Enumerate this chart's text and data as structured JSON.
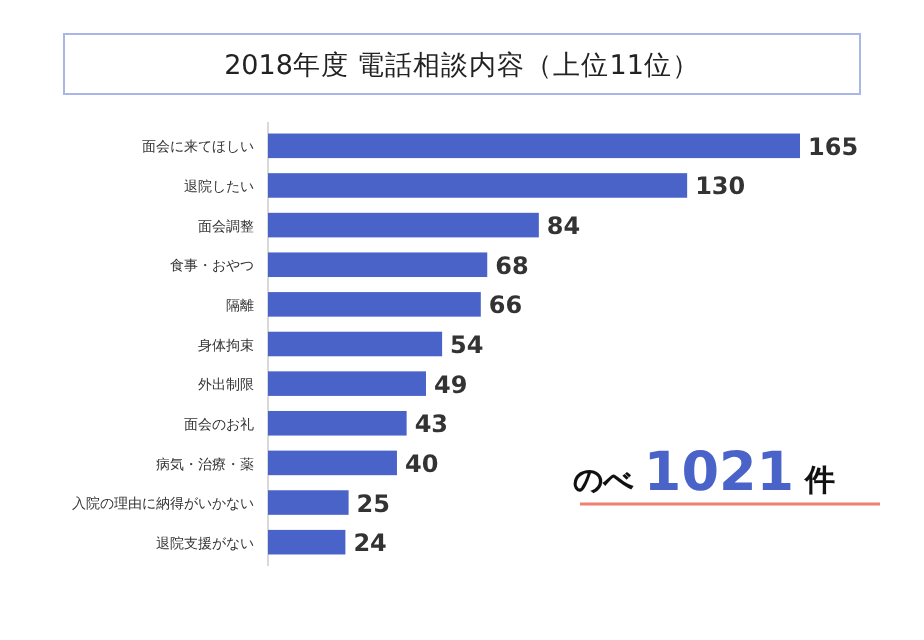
{
  "chart_data": {
    "type": "bar",
    "orientation": "horizontal",
    "title": "2018年度 電話相談内容（上位11位）",
    "categories": [
      "面会に来てほしい",
      "退院したい",
      "面会調整",
      "食事・おやつ",
      "隔離",
      "身体拘束",
      "外出制限",
      "面会のお礼",
      "病気・治療・薬",
      "入院の理由に納得がいかない",
      "退院支援がない"
    ],
    "values": [
      165,
      130,
      84,
      68,
      66,
      54,
      49,
      43,
      40,
      25,
      24
    ],
    "color": "#4a63c9",
    "data_labels": true,
    "annotations": [
      "のべ **1021** 件"
    ]
  }
}
